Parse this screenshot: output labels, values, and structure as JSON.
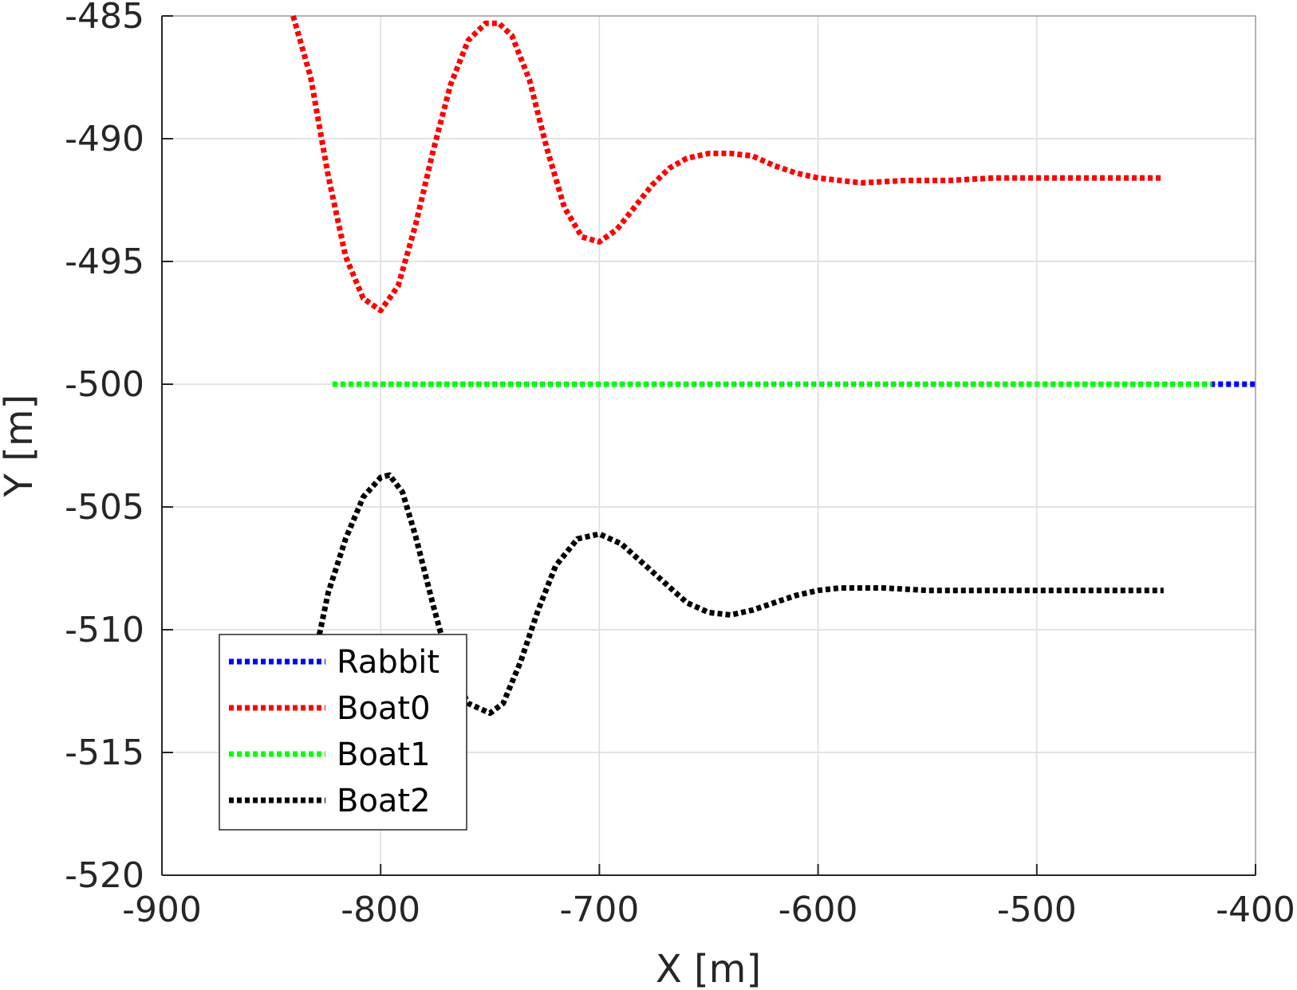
{
  "chart_data": {
    "type": "line",
    "title": "",
    "xlabel": "X [m]",
    "ylabel": "Y [m]",
    "xlim": [
      -900,
      -400
    ],
    "ylim": [
      -520,
      -485
    ],
    "xticks": [
      -900,
      -800,
      -700,
      -600,
      -500,
      -400
    ],
    "yticks": [
      -485,
      -490,
      -495,
      -500,
      -505,
      -510,
      -515,
      -520
    ],
    "grid": true,
    "legend_position": "bottom-left",
    "series": [
      {
        "name": "Rabbit",
        "color": "#0000ff",
        "points": [
          [
            -800,
            -500
          ],
          [
            -600,
            -500
          ],
          [
            -400,
            -500
          ]
        ]
      },
      {
        "name": "Boat0",
        "color": "#ff0000",
        "points": [
          [
            -840,
            -485
          ],
          [
            -832,
            -487.5
          ],
          [
            -824,
            -491.5
          ],
          [
            -816,
            -494.8
          ],
          [
            -808,
            -496.5
          ],
          [
            -800,
            -497
          ],
          [
            -792,
            -496
          ],
          [
            -784,
            -493.5
          ],
          [
            -776,
            -490.5
          ],
          [
            -768,
            -487.8
          ],
          [
            -760,
            -486
          ],
          [
            -752,
            -485.3
          ],
          [
            -746,
            -485.3
          ],
          [
            -740,
            -485.8
          ],
          [
            -732,
            -487.6
          ],
          [
            -724,
            -490.4
          ],
          [
            -716,
            -492.8
          ],
          [
            -708,
            -494
          ],
          [
            -700,
            -494.2
          ],
          [
            -692,
            -493.7
          ],
          [
            -684,
            -492.8
          ],
          [
            -676,
            -491.9
          ],
          [
            -668,
            -491.2
          ],
          [
            -660,
            -490.8
          ],
          [
            -650,
            -490.6
          ],
          [
            -640,
            -490.6
          ],
          [
            -630,
            -490.7
          ],
          [
            -620,
            -491.1
          ],
          [
            -610,
            -491.4
          ],
          [
            -600,
            -491.6
          ],
          [
            -590,
            -491.7
          ],
          [
            -580,
            -491.8
          ],
          [
            -560,
            -491.7
          ],
          [
            -540,
            -491.7
          ],
          [
            -520,
            -491.6
          ],
          [
            -500,
            -491.6
          ],
          [
            -480,
            -491.6
          ],
          [
            -460,
            -491.6
          ],
          [
            -442,
            -491.6
          ]
        ]
      },
      {
        "name": "Boat1",
        "color": "#00ff00",
        "points": [
          [
            -822,
            -500
          ],
          [
            -700,
            -500
          ],
          [
            -600,
            -500
          ],
          [
            -500,
            -500
          ],
          [
            -420,
            -500
          ]
        ]
      },
      {
        "name": "Boat2",
        "color": "#000000",
        "points": [
          [
            -828,
            -510.2
          ],
          [
            -824,
            -508.5
          ],
          [
            -816,
            -506.3
          ],
          [
            -808,
            -504.6
          ],
          [
            -800,
            -503.8
          ],
          [
            -796,
            -503.7
          ],
          [
            -790,
            -504.4
          ],
          [
            -784,
            -506.2
          ],
          [
            -776,
            -509
          ],
          [
            -768,
            -511.6
          ],
          [
            -760,
            -513
          ],
          [
            -750,
            -513.4
          ],
          [
            -744,
            -513
          ],
          [
            -736,
            -511.3
          ],
          [
            -728,
            -509.2
          ],
          [
            -720,
            -507.4
          ],
          [
            -710,
            -506.3
          ],
          [
            -700,
            -506.1
          ],
          [
            -690,
            -506.5
          ],
          [
            -680,
            -507.3
          ],
          [
            -670,
            -508.1
          ],
          [
            -660,
            -508.9
          ],
          [
            -650,
            -509.3
          ],
          [
            -640,
            -509.4
          ],
          [
            -630,
            -509.2
          ],
          [
            -620,
            -508.9
          ],
          [
            -610,
            -508.6
          ],
          [
            -600,
            -508.4
          ],
          [
            -590,
            -508.3
          ],
          [
            -580,
            -508.3
          ],
          [
            -570,
            -508.3
          ],
          [
            -550,
            -508.4
          ],
          [
            -520,
            -508.4
          ],
          [
            -490,
            -508.4
          ],
          [
            -460,
            -508.4
          ],
          [
            -442,
            -508.4
          ]
        ]
      }
    ]
  }
}
